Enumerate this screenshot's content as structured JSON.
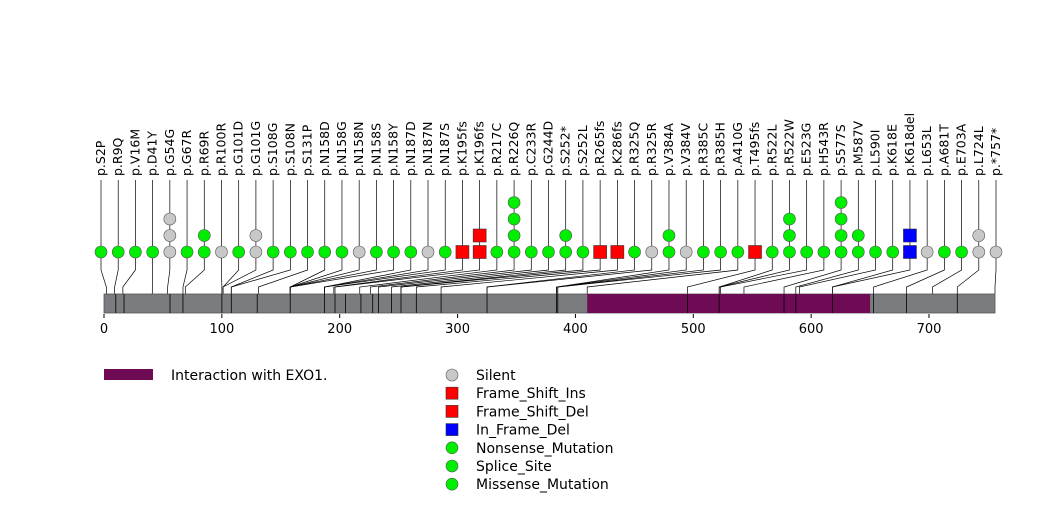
{
  "chart_data": {
    "type": "lollipop",
    "protein_length": 756,
    "axis": {
      "min": 0,
      "max": 756,
      "ticks": [
        0,
        100,
        200,
        300,
        400,
        500,
        600,
        700
      ]
    },
    "domains": [
      {
        "name": "Interaction with EXO1.",
        "start": 410,
        "end": 650,
        "color": "#6f0a55"
      }
    ],
    "boundaries": [
      10,
      17,
      56,
      67,
      100,
      108,
      130,
      158,
      187,
      196,
      205,
      218,
      228,
      233,
      244,
      252,
      265,
      286,
      325,
      384,
      385,
      495,
      522,
      577,
      587,
      618,
      653,
      681,
      724
    ],
    "mutations": [
      {
        "label": "p.S2P",
        "pos": 2,
        "stack": [
          "Missense_Mutation"
        ]
      },
      {
        "label": "p.R9Q",
        "pos": 9,
        "stack": [
          "Missense_Mutation"
        ]
      },
      {
        "label": "p.V16M",
        "pos": 16,
        "stack": [
          "Missense_Mutation"
        ]
      },
      {
        "label": "p.D41Y",
        "pos": 41,
        "stack": [
          "Missense_Mutation"
        ]
      },
      {
        "label": "p.G54G",
        "pos": 54,
        "stack": [
          "Silent",
          "Silent",
          "Silent"
        ]
      },
      {
        "label": "p.G67R",
        "pos": 67,
        "stack": [
          "Missense_Mutation"
        ]
      },
      {
        "label": "p.R69R",
        "pos": 69,
        "stack": [
          "Missense_Mutation",
          "Missense_Mutation"
        ]
      },
      {
        "label": "p.R100R",
        "pos": 100,
        "stack": [
          "Silent"
        ]
      },
      {
        "label": "p.G101D",
        "pos": 101,
        "stack": [
          "Missense_Mutation"
        ]
      },
      {
        "label": "p.G101G",
        "pos": 101,
        "stack": [
          "Silent",
          "Silent"
        ]
      },
      {
        "label": "p.S108G",
        "pos": 108,
        "stack": [
          "Missense_Mutation"
        ]
      },
      {
        "label": "p.S108N",
        "pos": 108,
        "stack": [
          "Missense_Mutation"
        ]
      },
      {
        "label": "p.S131P",
        "pos": 131,
        "stack": [
          "Missense_Mutation"
        ]
      },
      {
        "label": "p.N158D",
        "pos": 158,
        "stack": [
          "Missense_Mutation"
        ]
      },
      {
        "label": "p.N158G",
        "pos": 158,
        "stack": [
          "Missense_Mutation"
        ]
      },
      {
        "label": "p.N158N",
        "pos": 158,
        "stack": [
          "Silent"
        ]
      },
      {
        "label": "p.N158S",
        "pos": 158,
        "stack": [
          "Missense_Mutation"
        ]
      },
      {
        "label": "p.N158Y",
        "pos": 158,
        "stack": [
          "Missense_Mutation"
        ]
      },
      {
        "label": "p.N187D",
        "pos": 187,
        "stack": [
          "Missense_Mutation"
        ]
      },
      {
        "label": "p.N187N",
        "pos": 187,
        "stack": [
          "Silent"
        ]
      },
      {
        "label": "p.N187S",
        "pos": 187,
        "stack": [
          "Missense_Mutation"
        ]
      },
      {
        "label": "p.K195fs",
        "pos": 195,
        "stack": [
          "Frame_Shift_Del"
        ]
      },
      {
        "label": "p.K196fs",
        "pos": 196,
        "stack": [
          "Frame_Shift_Del",
          "Frame_Shift_Ins"
        ]
      },
      {
        "label": "p.R217C",
        "pos": 217,
        "stack": [
          "Missense_Mutation"
        ]
      },
      {
        "label": "p.R226Q",
        "pos": 226,
        "stack": [
          "Missense_Mutation",
          "Missense_Mutation",
          "Missense_Mutation",
          "Missense_Mutation"
        ]
      },
      {
        "label": "p.C233R",
        "pos": 233,
        "stack": [
          "Missense_Mutation"
        ]
      },
      {
        "label": "p.G244D",
        "pos": 244,
        "stack": [
          "Missense_Mutation"
        ]
      },
      {
        "label": "p.S252*",
        "pos": 252,
        "stack": [
          "Nonsense_Mutation",
          "Nonsense_Mutation"
        ]
      },
      {
        "label": "p.S252L",
        "pos": 252,
        "stack": [
          "Missense_Mutation"
        ]
      },
      {
        "label": "p.R265fs",
        "pos": 265,
        "stack": [
          "Frame_Shift_Del"
        ]
      },
      {
        "label": "p.K286fs",
        "pos": 286,
        "stack": [
          "Frame_Shift_Del"
        ]
      },
      {
        "label": "p.R325Q",
        "pos": 325,
        "stack": [
          "Missense_Mutation"
        ]
      },
      {
        "label": "p.R325R",
        "pos": 325,
        "stack": [
          "Silent"
        ]
      },
      {
        "label": "p.V384A",
        "pos": 384,
        "stack": [
          "Missense_Mutation",
          "Missense_Mutation"
        ]
      },
      {
        "label": "p.V384V",
        "pos": 384,
        "stack": [
          "Silent"
        ]
      },
      {
        "label": "p.R385C",
        "pos": 385,
        "stack": [
          "Missense_Mutation"
        ]
      },
      {
        "label": "p.R385H",
        "pos": 385,
        "stack": [
          "Missense_Mutation"
        ]
      },
      {
        "label": "p.A410G",
        "pos": 410,
        "stack": [
          "Missense_Mutation"
        ]
      },
      {
        "label": "p.T495fs",
        "pos": 495,
        "stack": [
          "Frame_Shift_Del"
        ]
      },
      {
        "label": "p.R522L",
        "pos": 522,
        "stack": [
          "Missense_Mutation"
        ]
      },
      {
        "label": "p.R522W",
        "pos": 522,
        "stack": [
          "Missense_Mutation",
          "Missense_Mutation",
          "Missense_Mutation"
        ]
      },
      {
        "label": "p.E523G",
        "pos": 523,
        "stack": [
          "Missense_Mutation"
        ]
      },
      {
        "label": "p.H543R",
        "pos": 543,
        "stack": [
          "Missense_Mutation"
        ]
      },
      {
        "label": "p.S577S",
        "pos": 577,
        "stack": [
          "Missense_Mutation",
          "Missense_Mutation",
          "Missense_Mutation",
          "Missense_Mutation"
        ]
      },
      {
        "label": "p.M587V",
        "pos": 587,
        "stack": [
          "Missense_Mutation",
          "Missense_Mutation"
        ]
      },
      {
        "label": "p.L590I",
        "pos": 590,
        "stack": [
          "Missense_Mutation"
        ]
      },
      {
        "label": "p.K618E",
        "pos": 618,
        "stack": [
          "Missense_Mutation"
        ]
      },
      {
        "label": "p.K618del",
        "pos": 618,
        "stack": [
          "In_Frame_Del",
          "In_Frame_Del"
        ]
      },
      {
        "label": "p.L653L",
        "pos": 653,
        "stack": [
          "Silent"
        ]
      },
      {
        "label": "p.A681T",
        "pos": 681,
        "stack": [
          "Missense_Mutation"
        ]
      },
      {
        "label": "p.E703A",
        "pos": 703,
        "stack": [
          "Missense_Mutation"
        ]
      },
      {
        "label": "p.L724L",
        "pos": 724,
        "stack": [
          "Silent",
          "Silent"
        ]
      },
      {
        "label": "p.*757*",
        "pos": 756,
        "stack": [
          "Silent"
        ]
      }
    ],
    "legend": [
      {
        "label": "Silent",
        "shape": "circle",
        "color": "#c8c8c8"
      },
      {
        "label": "Frame_Shift_Ins",
        "shape": "square",
        "color": "#ff0000"
      },
      {
        "label": "Frame_Shift_Del",
        "shape": "square",
        "color": "#ff0000"
      },
      {
        "label": "In_Frame_Del",
        "shape": "square",
        "color": "#0000ff"
      },
      {
        "label": "Nonsense_Mutation",
        "shape": "circle",
        "color": "#00ee00"
      },
      {
        "label": "Splice_Site",
        "shape": "circle",
        "color": "#00ee00"
      },
      {
        "label": "Missense_Mutation",
        "shape": "circle",
        "color": "#00ee00"
      }
    ],
    "colors": {
      "protein_bar": "#7a7c80",
      "stem": "#000000",
      "Silent": "#c8c8c8",
      "Frame_Shift_Ins": "#ff0000",
      "Frame_Shift_Del": "#ff0000",
      "In_Frame_Del": "#0000ff",
      "Nonsense_Mutation": "#00ee00",
      "Splice_Site": "#00ee00",
      "Missense_Mutation": "#00ee00"
    }
  }
}
